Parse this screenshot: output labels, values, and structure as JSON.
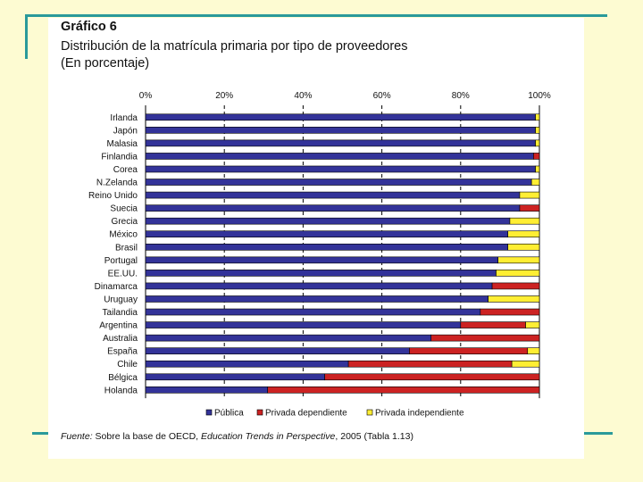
{
  "chart_data": {
    "type": "bar",
    "orientation": "horizontal",
    "stacked": true,
    "title": "Gráfico 6",
    "subtitle": "Distribución de la matrícula primaria por tipo de proveedores",
    "unit_note": "(En porcentaje)",
    "x_ticks": [
      "0%",
      "20%",
      "40%",
      "60%",
      "80%",
      "100%"
    ],
    "xlim": [
      0,
      100
    ],
    "grid": "vertical dashed",
    "legend_position": "bottom",
    "categories": [
      "Irlanda",
      "Japón",
      "Malasia",
      "Finlandia",
      "Corea",
      "N.Zelanda",
      "Reino Unido",
      "Suecia",
      "Grecia",
      "México",
      "Brasil",
      "Portugal",
      "EE.UU.",
      "Dinamarca",
      "Uruguay",
      "Tailandia",
      "Argentina",
      "Australia",
      "España",
      "Chile",
      "Bélgica",
      "Holanda"
    ],
    "series": [
      {
        "name": "Pública",
        "color": "#333399",
        "values": [
          99,
          99,
          99,
          98.5,
          99,
          98,
          95,
          95,
          92.5,
          92,
          92,
          89.5,
          89,
          88,
          87,
          85,
          80,
          72.5,
          67,
          51.5,
          45.5,
          31
        ]
      },
      {
        "name": "Privada dependiente",
        "color": "#cc2222",
        "values": [
          0,
          0,
          0,
          1.5,
          0,
          0,
          0,
          5,
          0,
          0,
          0,
          0,
          0,
          12,
          0,
          15,
          16.5,
          27.5,
          30,
          41.5,
          54.5,
          69
        ]
      },
      {
        "name": "Privada independiente",
        "color": "#ffee33",
        "values": [
          1,
          1,
          1,
          0,
          1,
          2,
          5,
          0,
          7.5,
          8,
          8,
          10.5,
          11,
          0,
          13,
          0,
          3.5,
          0,
          3,
          7,
          0,
          0
        ]
      }
    ]
  },
  "source": {
    "prefix": "Fuente:",
    "text1": " Sobre la base de OECD, ",
    "italic": "Education Trends in Perspective",
    "text2": ", 2005 (Tabla 1.13)"
  }
}
